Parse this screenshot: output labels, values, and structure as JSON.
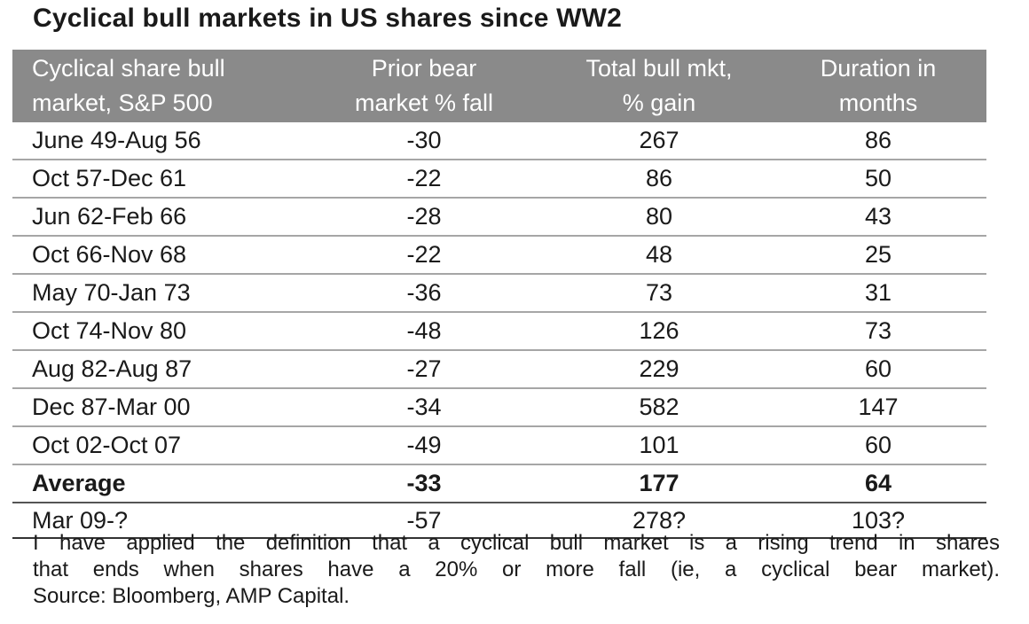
{
  "title": "Cyclical bull markets in US shares since WW2",
  "table": {
    "headers": [
      [
        "Cyclical share bull",
        "market, S&P 500"
      ],
      [
        "Prior bear",
        "market % fall"
      ],
      [
        "Total bull mkt,",
        "% gain"
      ],
      [
        "Duration in",
        "months"
      ]
    ],
    "rows": [
      [
        "June 49-Aug 56",
        "-30",
        "267",
        "86"
      ],
      [
        "Oct 57-Dec 61",
        "-22",
        "86",
        "50"
      ],
      [
        "Jun 62-Feb 66",
        "-28",
        "80",
        "43"
      ],
      [
        "Oct 66-Nov 68",
        "-22",
        "48",
        "25"
      ],
      [
        "May 70-Jan 73",
        "-36",
        "73",
        "31"
      ],
      [
        "Oct 74-Nov 80",
        "-48",
        "126",
        "73"
      ],
      [
        "Aug 82-Aug 87",
        "-27",
        "229",
        "60"
      ],
      [
        "Dec 87-Mar 00",
        "-34",
        "582",
        "147"
      ],
      [
        "Oct 02-Oct 07",
        "-49",
        "101",
        "60"
      ]
    ],
    "average": [
      "Average",
      "-33",
      "177",
      "64"
    ],
    "current": [
      "Mar 09-?",
      "-57",
      "278?",
      "103?"
    ]
  },
  "notes": {
    "line1": "I have applied the definition that a cyclical bull market is a rising trend in shares",
    "line2": "that ends when shares have a 20% or more fall (ie, a cyclical bear market).",
    "line3": "Source: Bloomberg, AMP Capital."
  }
}
